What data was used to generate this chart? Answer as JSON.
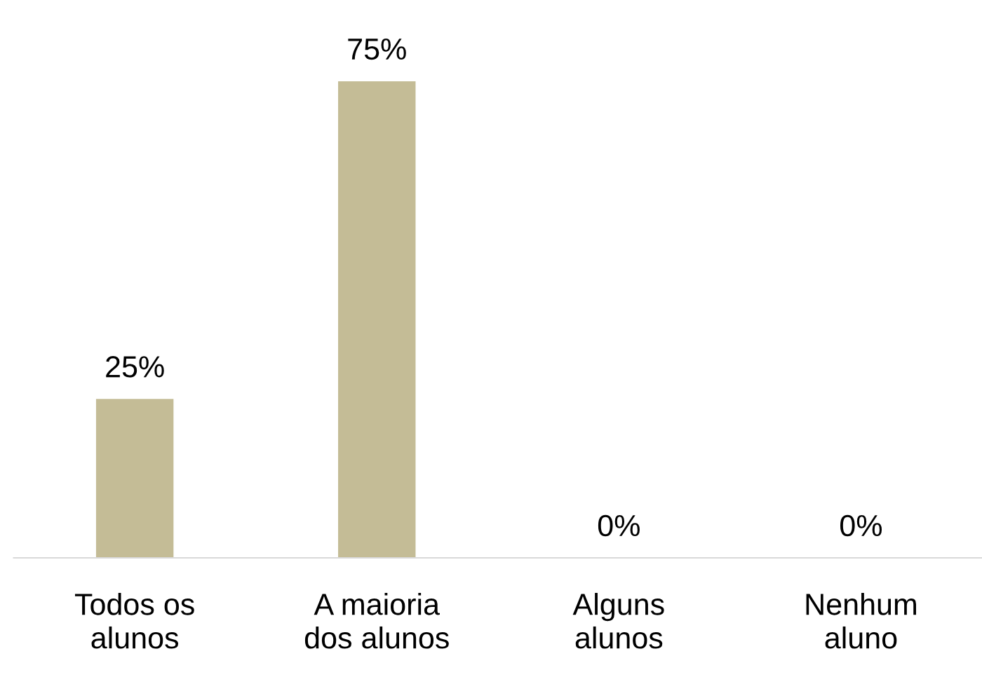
{
  "chart_data": {
    "type": "bar",
    "categories": [
      "Todos os\nalunos",
      "A maioria\ndos alunos",
      "Alguns\nalunos",
      "Nenhum\naluno"
    ],
    "values": [
      25,
      75,
      0,
      0
    ],
    "value_labels": [
      "25%",
      "75%",
      "0%",
      "0%"
    ],
    "color": "#c4bc96",
    "grid": false,
    "legend": false
  }
}
